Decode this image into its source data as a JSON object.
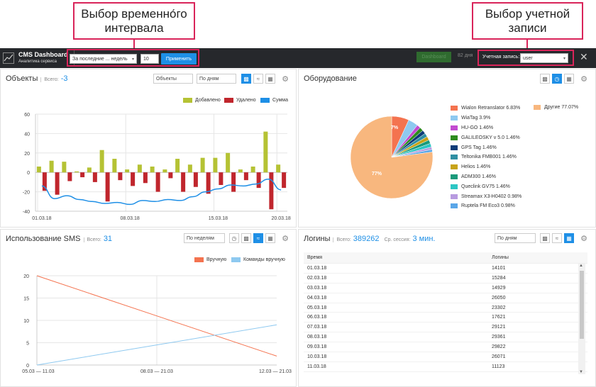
{
  "annotations": {
    "interval_callout": "Выбор временно́го интервала",
    "account_callout": "Выбор учетной записи"
  },
  "topbar": {
    "brand_title": "CMS Dashboard",
    "brand_subtitle": "Аналитика сервиса",
    "period_select": "За последние ... недель",
    "period_value": "10",
    "apply_label": "Применить",
    "dashboard_label": "Dashboard",
    "days_label": "82 дня",
    "account_label": "Учетная запись:",
    "account_value": "user"
  },
  "objects": {
    "title": "Объекты",
    "total_label": "Всего:",
    "total_value": "-3",
    "type_select": "Объекты",
    "group_select": "По дням",
    "legend": [
      "Добавлено",
      "Удалено",
      "Сумма"
    ],
    "colors": {
      "added": "#b5c234",
      "removed": "#c0262d",
      "sum": "#1e8fe6"
    }
  },
  "equipment": {
    "title": "Оборудование",
    "slice_label_small": "7%",
    "slice_label_big": "77%",
    "legend": [
      {
        "label": "Wialon Retranslator 6.83%",
        "color": "#f4734f"
      },
      {
        "label": "WiaTag 3.9%",
        "color": "#8ec9f0"
      },
      {
        "label": "HU-GO 1.46%",
        "color": "#c24bd0"
      },
      {
        "label": "GALILEOSKY v 5.0 1.46%",
        "color": "#2e8b1e"
      },
      {
        "label": "GPS Tag 1.46%",
        "color": "#0f3c78"
      },
      {
        "label": "Teltonika FMB001 1.46%",
        "color": "#2f8fa3"
      },
      {
        "label": "Helios 1.46%",
        "color": "#c7a318"
      },
      {
        "label": "ADM300 1.46%",
        "color": "#1a9a7a"
      },
      {
        "label": "Queclink GV75 1.46%",
        "color": "#2cc6c4"
      },
      {
        "label": "Streamax X3-H0402 0.98%",
        "color": "#b79be0"
      },
      {
        "label": "Ruptela FM Eco3 0.98%",
        "color": "#5aa6e8"
      }
    ],
    "other": {
      "label": "Другие 77.07%",
      "color": "#f8b77e"
    }
  },
  "sms": {
    "title": "Использование SMS",
    "total_label": "Всего:",
    "total_value": "31",
    "group_select": "По неделям",
    "legend": [
      "Вручную",
      "Команды вручную"
    ],
    "colors": {
      "manual": "#f4734f",
      "commands": "#8ec9f0"
    }
  },
  "logins": {
    "title": "Логины",
    "total_label": "Всего:",
    "total_value": "389262",
    "session_label": "Ср. сессия:",
    "session_value": "3 мин.",
    "group_select": "По дням",
    "columns": [
      "Время",
      "Логины"
    ],
    "rows": [
      [
        "01.03.18",
        "14101"
      ],
      [
        "02.03.18",
        "15284"
      ],
      [
        "03.03.18",
        "14929"
      ],
      [
        "04.03.18",
        "26050"
      ],
      [
        "05.03.18",
        "23302"
      ],
      [
        "06.03.18",
        "17621"
      ],
      [
        "07.03.18",
        "29121"
      ],
      [
        "08.03.18",
        "29361"
      ],
      [
        "09.03.18",
        "29822"
      ],
      [
        "10.03.18",
        "26071"
      ],
      [
        "11.03.18",
        "11123"
      ]
    ]
  },
  "chart_data": [
    {
      "type": "bar",
      "categories": [
        "01.03.18",
        "02.03.18",
        "03.03.18",
        "04.03.18",
        "05.03.18",
        "06.03.18",
        "07.03.18",
        "08.03.18",
        "09.03.18",
        "10.03.18",
        "11.03.18",
        "12.03.18",
        "13.03.18",
        "14.03.18",
        "15.03.18",
        "16.03.18",
        "17.03.18",
        "18.03.18",
        "19.03.18",
        "20.03.18"
      ],
      "series": [
        {
          "name": "Добавлено",
          "values": [
            6,
            12,
            11,
            1,
            5,
            23,
            14,
            3,
            8,
            6,
            3,
            14,
            8,
            15,
            15,
            20,
            3,
            6,
            42,
            8
          ]
        },
        {
          "name": "Удалено",
          "values": [
            -19,
            -23,
            -9,
            -5,
            -10,
            -30,
            -8,
            -14,
            -11,
            -20,
            -6,
            -20,
            -15,
            -22,
            -13,
            -20,
            -8,
            -16,
            -38,
            -16
          ]
        },
        {
          "name": "Сумма",
          "values": [
            -14,
            -27,
            -24,
            -28,
            -30,
            -32,
            -31,
            -33,
            -29,
            -30,
            -28,
            -29,
            -25,
            -20,
            -17,
            -13,
            -14,
            -12,
            -7,
            -18
          ]
        }
      ],
      "x_ticks": [
        "01.03.18",
        "08.03.18",
        "15.03.18",
        "20.03.18"
      ],
      "ylim": [
        -40,
        60
      ],
      "y_ticks": [
        -40,
        -20,
        0,
        20,
        40,
        60
      ],
      "grid": true,
      "legend": "top-right"
    },
    {
      "type": "pie",
      "labels": [
        "Wialon Retranslator",
        "WiaTag",
        "HU-GO",
        "GALILEOSKY v 5.0",
        "GPS Tag",
        "Teltonika FMB001",
        "Helios",
        "ADM300",
        "Queclink GV75",
        "Streamax X3-H0402",
        "Ruptela FM Eco3",
        "Другие"
      ],
      "values": [
        6.83,
        3.9,
        1.46,
        1.46,
        1.46,
        1.46,
        1.46,
        1.46,
        1.46,
        0.98,
        0.98,
        77.07
      ],
      "legend": "right"
    },
    {
      "type": "line",
      "x": [
        "05.03 — 11.03",
        "08.03 — 21.03",
        "12.03 — 21.03"
      ],
      "series": [
        {
          "name": "Вручную",
          "values": [
            20,
            11,
            2
          ]
        },
        {
          "name": "Команды вручную",
          "values": [
            0,
            4.5,
            9
          ]
        }
      ],
      "ylim": [
        0,
        20
      ],
      "y_ticks": [
        0,
        5,
        10,
        15,
        20
      ],
      "grid": true,
      "legend": "top-right"
    }
  ]
}
